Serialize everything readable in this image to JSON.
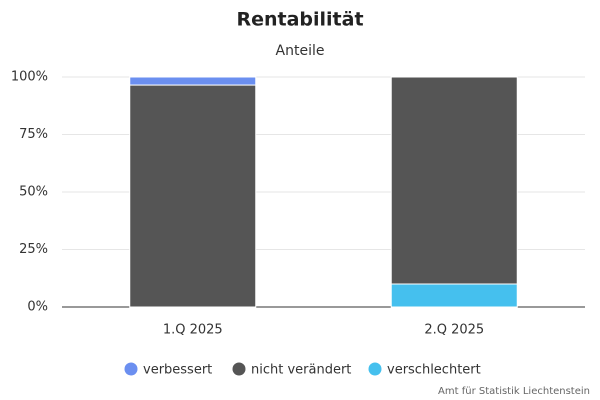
{
  "chart_data": {
    "type": "stacked-bar",
    "title": "Rentabilität",
    "subtitle": "Anteile",
    "categories": [
      "1.Q 2025",
      "2.Q 2025"
    ],
    "series": [
      {
        "name": "verbessert",
        "color": "#6b8ff0",
        "values": [
          3.5,
          0
        ]
      },
      {
        "name": "nicht verändert",
        "color": "#555555",
        "values": [
          96.5,
          90
        ]
      },
      {
        "name": "verschlechtert",
        "color": "#45c0ee",
        "values": [
          0,
          10
        ]
      }
    ],
    "ylim": [
      0,
      100
    ],
    "yticks": [
      {
        "value": 0,
        "label": "0%"
      },
      {
        "value": 25,
        "label": "25%"
      },
      {
        "value": 50,
        "label": "50%"
      },
      {
        "value": 75,
        "label": "75%"
      },
      {
        "value": 100,
        "label": "100%"
      }
    ],
    "grid": true,
    "legend": "bottom",
    "credits": "Amt für Statistik Liechtenstein"
  }
}
